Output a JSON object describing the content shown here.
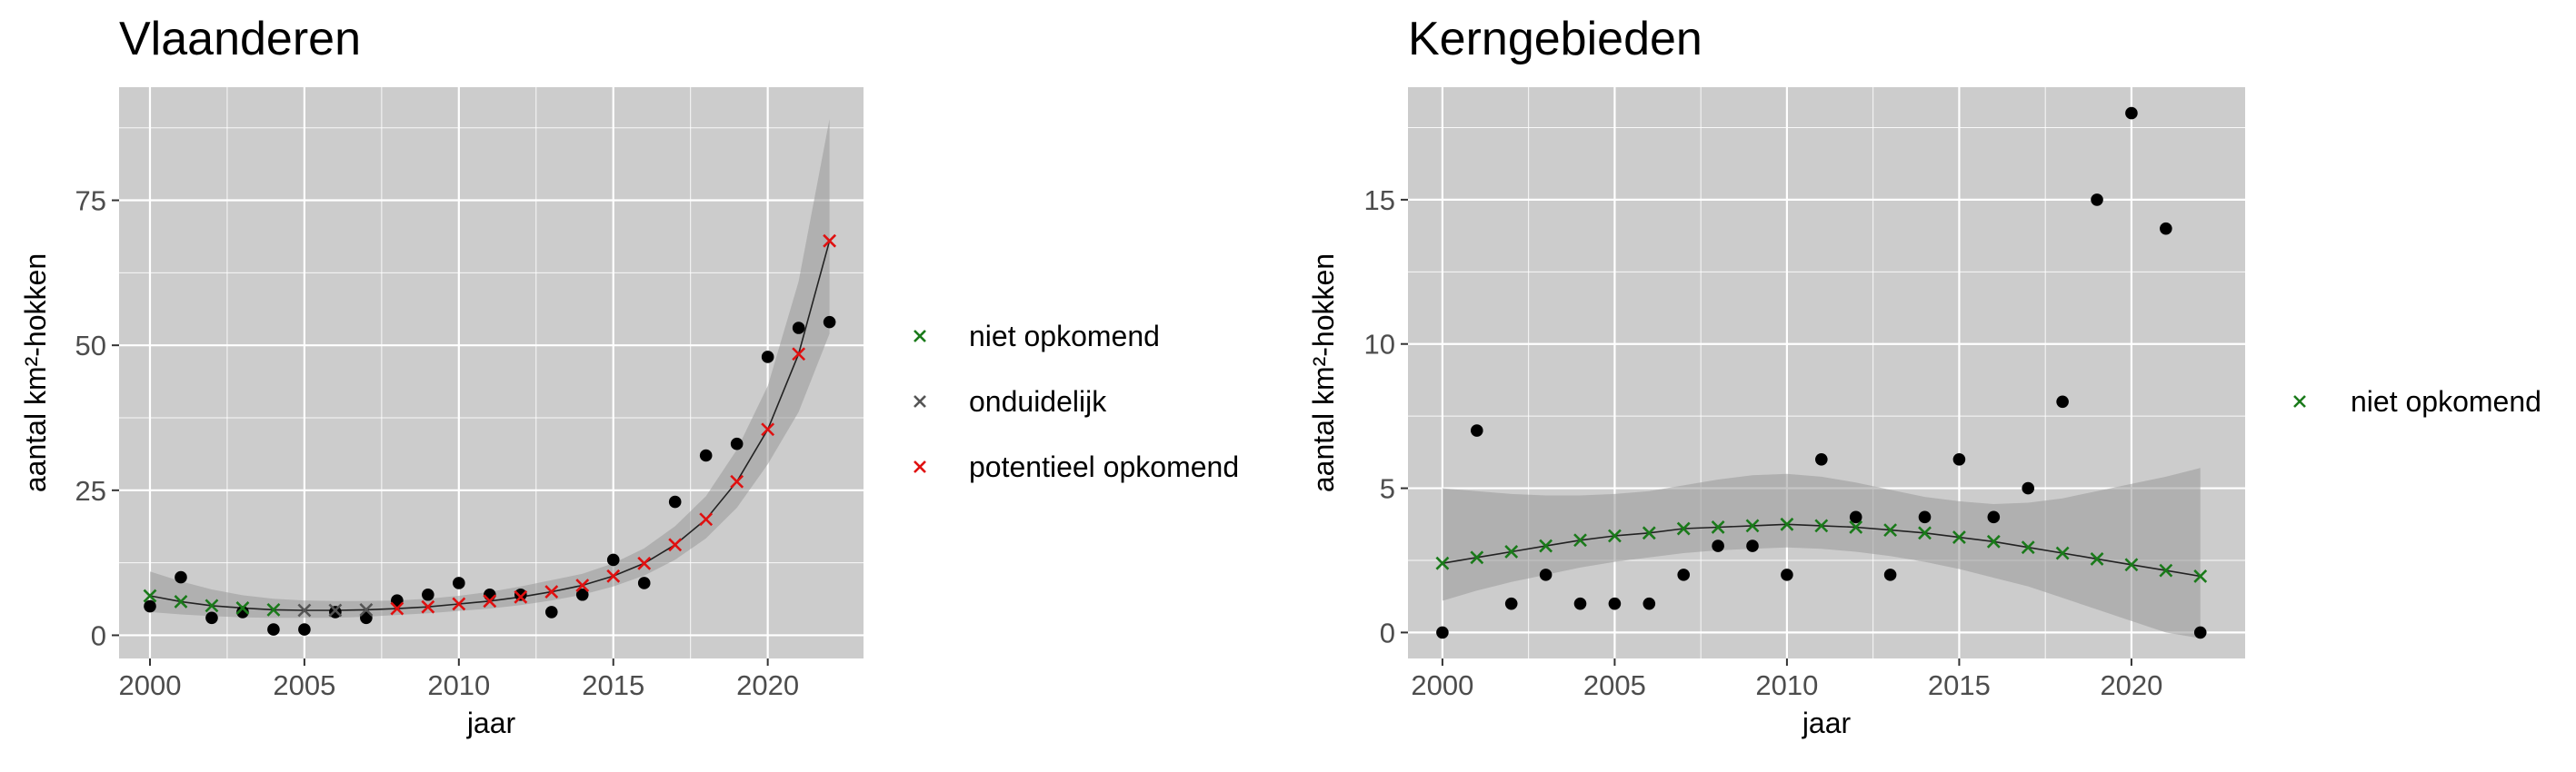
{
  "colors": {
    "panel_bg": "#cccccc",
    "grid": "#ffffff",
    "ribbon": "#999999",
    "point": "#000000",
    "trend_line": "#222222",
    "niet opkomend": "#1a7a1a",
    "onduidelijk": "#555555",
    "potentieel opkomend": "#e01010"
  },
  "chart_data": [
    {
      "type": "scatter",
      "title": "Vlaanderen",
      "xlabel": "jaar",
      "ylabel": "aantal km²-hokken",
      "xlim": [
        1999,
        2023.1
      ],
      "ylim": [
        -4,
        94.5
      ],
      "x_ticks": [
        2000,
        2005,
        2010,
        2015,
        2020
      ],
      "y_ticks": [
        0,
        25,
        50,
        75
      ],
      "grid": true,
      "legend_position": "right",
      "legend": [
        {
          "marker": "cross",
          "color": "#1a7a1a",
          "label": "niet opkomend"
        },
        {
          "marker": "cross",
          "color": "#555555",
          "label": "onduidelijk"
        },
        {
          "marker": "cross",
          "color": "#e01010",
          "label": "potentieel opkomend"
        }
      ],
      "observations": {
        "x": [
          2000,
          2001,
          2002,
          2003,
          2004,
          2005,
          2006,
          2007,
          2008,
          2009,
          2010,
          2011,
          2012,
          2013,
          2014,
          2015,
          2016,
          2017,
          2018,
          2019,
          2020,
          2021,
          2022
        ],
        "y": [
          5,
          10,
          3,
          4,
          1,
          1,
          4,
          3,
          6,
          7,
          9,
          7,
          7,
          4,
          7,
          13,
          9,
          23,
          31,
          33,
          48,
          53,
          54
        ]
      },
      "trend": {
        "x": [
          2000,
          2001,
          2002,
          2003,
          2004,
          2005,
          2006,
          2007,
          2008,
          2009,
          2010,
          2011,
          2012,
          2013,
          2014,
          2015,
          2016,
          2017,
          2018,
          2019,
          2020,
          2021,
          2022
        ],
        "fit": [
          6.8,
          5.8,
          5.1,
          4.7,
          4.4,
          4.3,
          4.3,
          4.4,
          4.6,
          4.9,
          5.4,
          5.9,
          6.6,
          7.5,
          8.6,
          10.2,
          12.4,
          15.6,
          20.0,
          26.5,
          35.5,
          48.5,
          68.0
        ],
        "lower": [
          4.0,
          3.6,
          3.3,
          3.1,
          3.0,
          3.0,
          3.0,
          3.2,
          3.5,
          3.8,
          4.2,
          4.6,
          5.2,
          6.0,
          7.0,
          8.4,
          10.3,
          13.0,
          16.7,
          22.0,
          29.5,
          38.5,
          52.0
        ],
        "upper": [
          11.0,
          9.3,
          7.9,
          6.9,
          6.3,
          6.0,
          5.9,
          5.9,
          6.0,
          6.3,
          6.8,
          7.5,
          8.4,
          9.5,
          10.6,
          12.4,
          15.0,
          18.8,
          24.0,
          32.0,
          43.0,
          61.0,
          89.0
        ],
        "classification": [
          "niet opkomend",
          "niet opkomend",
          "niet opkomend",
          "niet opkomend",
          "niet opkomend",
          "onduidelijk",
          "onduidelijk",
          "onduidelijk",
          "potentieel opkomend",
          "potentieel opkomend",
          "potentieel opkomend",
          "potentieel opkomend",
          "potentieel opkomend",
          "potentieel opkomend",
          "potentieel opkomend",
          "potentieel opkomend",
          "potentieel opkomend",
          "potentieel opkomend",
          "potentieel opkomend",
          "potentieel opkomend",
          "potentieel opkomend",
          "potentieel opkomend",
          "potentieel opkomend"
        ]
      }
    },
    {
      "type": "scatter",
      "title": "Kerngebieden",
      "xlabel": "jaar",
      "ylabel": "aantal km²-hokken",
      "xlim": [
        1999,
        2023.3
      ],
      "ylim": [
        -0.9,
        18.9
      ],
      "x_ticks": [
        2000,
        2005,
        2010,
        2015,
        2020
      ],
      "y_ticks": [
        0,
        5,
        10,
        15
      ],
      "grid": true,
      "legend_position": "right",
      "legend": [
        {
          "marker": "cross",
          "color": "#1a7a1a",
          "label": "niet opkomend"
        }
      ],
      "observations": {
        "x": [
          2000,
          2001,
          2002,
          2003,
          2004,
          2005,
          2006,
          2007,
          2008,
          2009,
          2010,
          2011,
          2012,
          2013,
          2014,
          2015,
          2016,
          2017,
          2018,
          2019,
          2020,
          2021,
          2022
        ],
        "y": [
          0,
          7,
          1,
          2,
          1,
          1,
          1,
          2,
          3,
          3,
          2,
          6,
          4,
          2,
          4,
          6,
          4,
          5,
          8,
          15,
          18,
          14,
          0
        ]
      },
      "trend": {
        "x": [
          2000,
          2001,
          2002,
          2003,
          2004,
          2005,
          2006,
          2007,
          2008,
          2009,
          2010,
          2011,
          2012,
          2013,
          2014,
          2015,
          2016,
          2017,
          2018,
          2019,
          2020,
          2021,
          2022
        ],
        "fit": [
          2.4,
          2.6,
          2.8,
          3.0,
          3.2,
          3.35,
          3.45,
          3.6,
          3.65,
          3.7,
          3.75,
          3.7,
          3.65,
          3.55,
          3.45,
          3.3,
          3.15,
          2.95,
          2.75,
          2.55,
          2.35,
          2.15,
          1.95
        ],
        "lower": [
          1.1,
          1.45,
          1.75,
          2.0,
          2.25,
          2.45,
          2.6,
          2.75,
          2.85,
          2.9,
          2.95,
          2.9,
          2.8,
          2.65,
          2.45,
          2.2,
          1.9,
          1.6,
          1.2,
          0.8,
          0.4,
          0.0,
          -0.2
        ],
        "upper": [
          5.0,
          4.9,
          4.8,
          4.75,
          4.75,
          4.8,
          4.9,
          5.1,
          5.3,
          5.45,
          5.5,
          5.4,
          5.2,
          4.95,
          4.7,
          4.55,
          4.45,
          4.5,
          4.65,
          4.9,
          5.15,
          5.4,
          5.7
        ],
        "classification": [
          "niet opkomend",
          "niet opkomend",
          "niet opkomend",
          "niet opkomend",
          "niet opkomend",
          "niet opkomend",
          "niet opkomend",
          "niet opkomend",
          "niet opkomend",
          "niet opkomend",
          "niet opkomend",
          "niet opkomend",
          "niet opkomend",
          "niet opkomend",
          "niet opkomend",
          "niet opkomend",
          "niet opkomend",
          "niet opkomend",
          "niet opkomend",
          "niet opkomend",
          "niet opkomend",
          "niet opkomend",
          "niet opkomend"
        ]
      }
    }
  ]
}
